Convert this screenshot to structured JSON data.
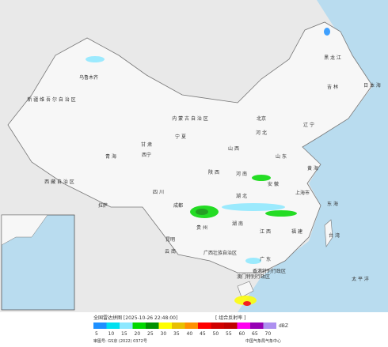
{
  "title": "全国雷达拼图 [2025-10-26 22:48:00]",
  "product": "[ 组合反射率 ]",
  "legend": {
    "unit": "dBZ",
    "values": [
      5,
      10,
      15,
      20,
      25,
      30,
      35,
      40,
      45,
      50,
      55,
      60,
      65,
      70
    ],
    "colors": [
      "#1e90ff",
      "#00e0f0",
      "#8ce8ff",
      "#00d800",
      "#009000",
      "#ffff00",
      "#e8c000",
      "#ff9000",
      "#ff0000",
      "#d00000",
      "#c00000",
      "#ff00f0",
      "#9600b4",
      "#ad90f0"
    ]
  },
  "footer": {
    "approval": "审图号: GS京 (2022) 0372号",
    "agency": "中国气象局气象中心"
  },
  "labels": {
    "xinjiang": "新 疆 维 吾 尔 自 治 区",
    "tibet": "西 藏 自 治 区",
    "qinghai": "青 海",
    "gansu": "甘 肃",
    "neimenggu": "内 蒙 古 自 治 区",
    "heilongjiang": "黑 龙 江",
    "jilin": "吉 林",
    "liaoning": "辽 宁",
    "hebei": "河 北",
    "shanxi": "山 西",
    "shaanxi": "陕 西",
    "sichuan": "四 川",
    "hubei": "湖 北",
    "hunan": "湖 南",
    "guizhou": "贵 州",
    "yunnan": "云 南",
    "guangxi": "广西壮族自治区",
    "guangdong": "广 东",
    "fujian": "福 建",
    "jiangxi": "江 西",
    "anhui": "安 徽",
    "shandong": "山 东",
    "henan": "河 南",
    "ningxia": "宁 夏",
    "shanghai": "上海市",
    "taiwan": "台 湾",
    "hongkong": "香港特别行政区",
    "macau": "澳门特别行政区",
    "urumqi": "乌鲁木齐",
    "lhasa": "拉萨",
    "xining": "西宁",
    "chengdu": "成都",
    "kunming": "昆明",
    "beijing": "北京",
    "huanghai": "黄 海",
    "donghai": "东 海",
    "riben": "日 本 海",
    "pacific": "太 平 洋"
  }
}
